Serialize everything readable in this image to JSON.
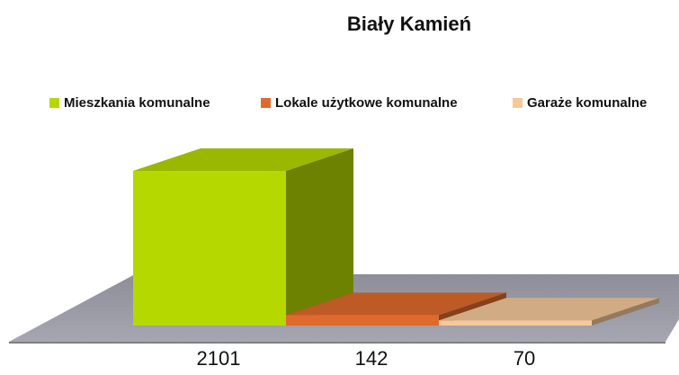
{
  "chart_data": {
    "type": "bar3d",
    "title": "Biały Kamień",
    "series": [
      {
        "name": "Mieszkania komunalne",
        "color": "#b5d800",
        "values": [
          2101
        ]
      },
      {
        "name": "Lokale użytkowe komunalne",
        "color": "#e06a2c",
        "values": [
          142
        ]
      },
      {
        "name": "Garaże komunalne",
        "color": "#f6c99a",
        "values": [
          70
        ]
      }
    ],
    "legend": "top"
  }
}
